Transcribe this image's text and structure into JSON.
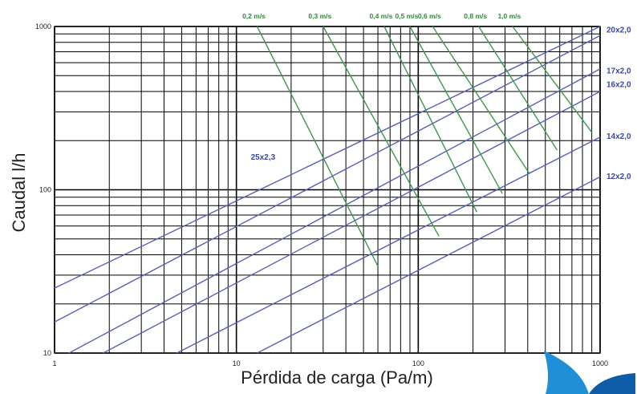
{
  "chart_data": {
    "type": "line",
    "title": "",
    "xlabel": "Pérdida de carga (Pa/m)",
    "ylabel": "Caudal l/h",
    "x_scale": "log",
    "y_scale": "log",
    "xlim": [
      1,
      1000
    ],
    "ylim": [
      10,
      1000
    ],
    "x_ticks": [
      "1",
      "10",
      "100",
      "1000"
    ],
    "y_ticks": [
      "10",
      "100",
      "1000"
    ],
    "grid": true,
    "pipe_color": "#5a5fb8",
    "velocity_color": "#3a9a4a",
    "pipe_series": [
      {
        "name": "25x2,3",
        "x": [
          1,
          1000
        ],
        "y": [
          25,
          1000
        ]
      },
      {
        "name": "20x2,0",
        "x": [
          1,
          1000
        ],
        "y": [
          15.5,
          880
        ]
      },
      {
        "name": "17x2,0",
        "x": [
          1.2,
          1000
        ],
        "y": [
          10,
          550
        ]
      },
      {
        "name": "16x2,0",
        "x": [
          1.85,
          1000
        ],
        "y": [
          10,
          400
        ]
      },
      {
        "name": "14x2,0",
        "x": [
          4.7,
          1000
        ],
        "y": [
          10,
          210
        ]
      },
      {
        "name": "12x2,0",
        "x": [
          13,
          1000
        ],
        "y": [
          10,
          120
        ]
      }
    ],
    "velocity_series": [
      {
        "name": "0,2 m/s",
        "x": [
          13,
          60
        ],
        "y": [
          1000,
          34
        ]
      },
      {
        "name": "0,3 m/s",
        "x": [
          30,
          130
        ],
        "y": [
          1000,
          52
        ]
      },
      {
        "name": "0,4 m/s",
        "x": [
          65,
          210
        ],
        "y": [
          1000,
          73
        ]
      },
      {
        "name": "0,5 m/s",
        "x": [
          90,
          290
        ],
        "y": [
          1000,
          95
        ]
      },
      {
        "name": "0,6 m/s",
        "x": [
          120,
          410
        ],
        "y": [
          1000,
          125
        ]
      },
      {
        "name": "0,8 m/s",
        "x": [
          215,
          580
        ],
        "y": [
          1000,
          175
        ]
      },
      {
        "name": "1,0 m/s",
        "x": [
          330,
          900
        ],
        "y": [
          1000,
          225
        ]
      }
    ],
    "pipe_labels": [
      {
        "text": "20x2,0",
        "x": 1000,
        "y": 960
      },
      {
        "text": "17x2,0",
        "x": 1000,
        "y": 540
      },
      {
        "text": "16x2,0",
        "x": 1000,
        "y": 445
      },
      {
        "text": "14x2,0",
        "x": 1000,
        "y": 215
      },
      {
        "text": "12x2,0",
        "x": 1000,
        "y": 122
      },
      {
        "text": "25x2,3",
        "x": 12,
        "y": 160
      }
    ],
    "velocity_labels": [
      {
        "text": "0,2 m/s",
        "x": 13,
        "y": 1000
      },
      {
        "text": "0,3 m/s",
        "x": 30,
        "y": 1000
      },
      {
        "text": "0,4 m/s",
        "x": 65,
        "y": 1000
      },
      {
        "text": "0,5 m/s",
        "x": 90,
        "y": 1000
      },
      {
        "text": "0,6 m/s",
        "x": 120,
        "y": 1000
      },
      {
        "text": "0,8 m/s",
        "x": 215,
        "y": 1000
      },
      {
        "text": "1,0 m/s",
        "x": 330,
        "y": 1000
      }
    ]
  }
}
